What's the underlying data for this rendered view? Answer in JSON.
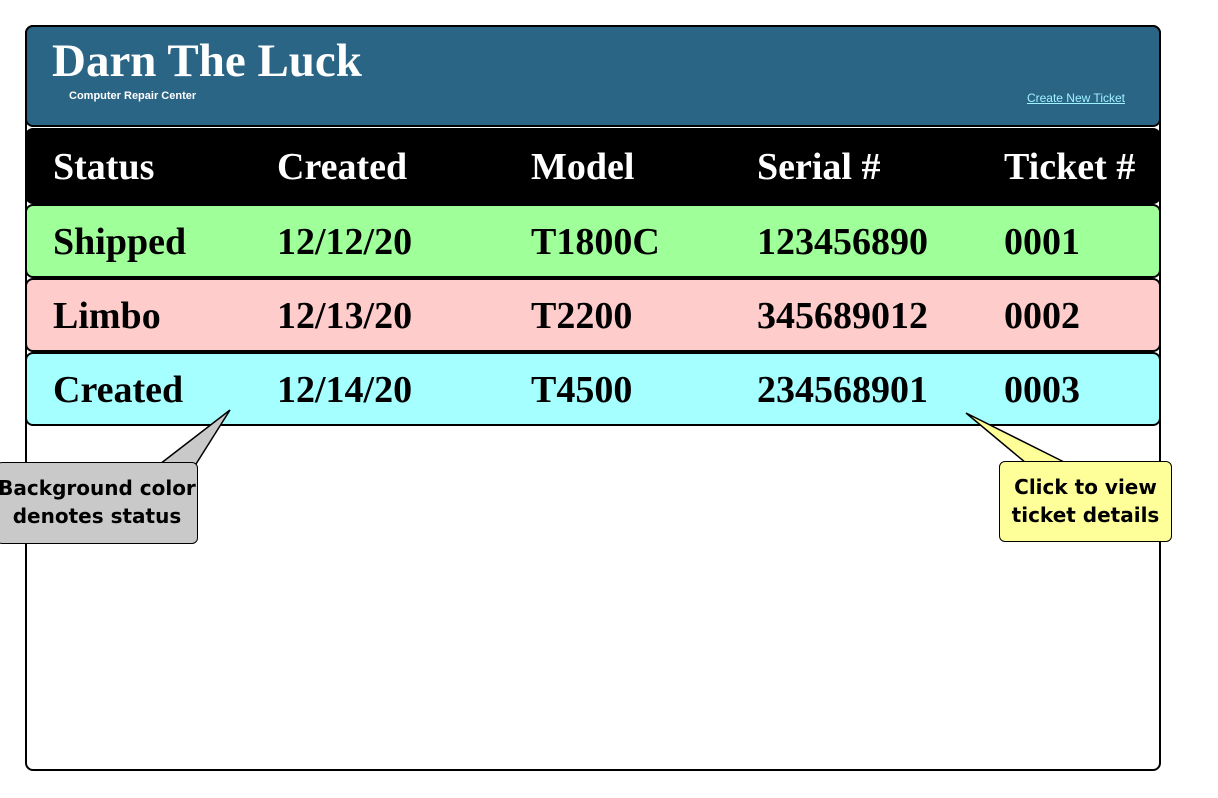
{
  "header": {
    "title": "Darn The Luck",
    "subtitle": "Computer Repair Center",
    "create_link": "Create New Ticket",
    "color": "#2b6585"
  },
  "table": {
    "columns": [
      "Status",
      "Created",
      "Model",
      "Serial #",
      "Ticket #"
    ],
    "rows": [
      {
        "status": "Shipped",
        "created": "12/12/20",
        "model": "T1800C",
        "serial": "123456890",
        "ticket": "0001",
        "color": "#9fff99"
      },
      {
        "status": "Limbo",
        "created": "12/13/20",
        "model": "T2200",
        "serial": "345689012",
        "ticket": "0002",
        "color": "#ffcccc"
      },
      {
        "status": "Created",
        "created": "12/14/20",
        "model": "T4500",
        "serial": "234568901",
        "ticket": "0003",
        "color": "#a5ffff"
      }
    ]
  },
  "callouts": {
    "status_note": [
      "Background color",
      "denotes status"
    ],
    "ticket_note": [
      "Click to view",
      "ticket details"
    ]
  }
}
